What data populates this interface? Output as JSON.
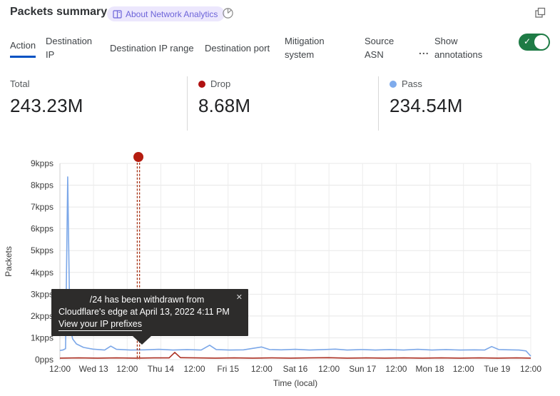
{
  "header": {
    "title": "Packets summary",
    "badge_label": "About Network Analytics"
  },
  "tabs": {
    "items": [
      {
        "label": "Action",
        "active": true
      },
      {
        "label": "Destination IP",
        "active": false
      },
      {
        "label": "Destination IP range",
        "active": false
      },
      {
        "label": "Destination port",
        "active": false
      },
      {
        "label": "Mitigation system",
        "active": false
      },
      {
        "label": "Source ASN",
        "active": false
      }
    ],
    "more_label": "...",
    "annotations_toggle": {
      "label": "Show annotations",
      "state": "on",
      "color": "#1e7b45"
    },
    "active_underline_color": "#0051c3"
  },
  "stats": [
    {
      "label": "Total",
      "value": "243.23M"
    },
    {
      "label": "Drop",
      "value": "8.68M",
      "dot_color": "#b01111"
    },
    {
      "label": "Pass",
      "value": "234.54M",
      "dot_color": "#7fabec"
    }
  ],
  "tooltip": {
    "line1": "/24 has been withdrawn from",
    "line2": "Cloudflare's edge at April 13, 2022 4:11 PM",
    "link_label": "View your IP prefixes",
    "close_glyph": "✕"
  },
  "chart_data": {
    "type": "line",
    "xlabel": "Time (local)",
    "ylabel": "Packets",
    "y_max_kpps": 9,
    "y_ticks": [
      "9kpps",
      "8kpps",
      "7kpps",
      "6kpps",
      "5kpps",
      "4kpps",
      "3kpps",
      "2kpps",
      "1kpps",
      "0pps"
    ],
    "x_ticks": [
      "12:00",
      "Wed 13",
      "12:00",
      "Thu 14",
      "12:00",
      "Fri 15",
      "12:00",
      "Sat 16",
      "12:00",
      "Sun 17",
      "12:00",
      "Mon 18",
      "12:00",
      "Tue 19",
      "12:00"
    ],
    "grid": true,
    "legend_position": "top-stats-row",
    "series": [
      {
        "name": "Pass",
        "color": "#7ba7e8",
        "unit": "kpps",
        "points": [
          [
            0,
            0.42
          ],
          [
            0.006,
            0.44
          ],
          [
            0.012,
            0.5
          ],
          [
            0.0165,
            8.38
          ],
          [
            0.021,
            1.6
          ],
          [
            0.027,
            0.95
          ],
          [
            0.035,
            0.72
          ],
          [
            0.05,
            0.56
          ],
          [
            0.07,
            0.48
          ],
          [
            0.095,
            0.44
          ],
          [
            0.108,
            0.62
          ],
          [
            0.12,
            0.47
          ],
          [
            0.15,
            0.44
          ],
          [
            0.18,
            0.45
          ],
          [
            0.21,
            0.47
          ],
          [
            0.24,
            0.44
          ],
          [
            0.27,
            0.46
          ],
          [
            0.3,
            0.44
          ],
          [
            0.318,
            0.66
          ],
          [
            0.332,
            0.46
          ],
          [
            0.36,
            0.44
          ],
          [
            0.39,
            0.45
          ],
          [
            0.428,
            0.58
          ],
          [
            0.445,
            0.46
          ],
          [
            0.47,
            0.45
          ],
          [
            0.5,
            0.47
          ],
          [
            0.53,
            0.44
          ],
          [
            0.56,
            0.46
          ],
          [
            0.585,
            0.48
          ],
          [
            0.61,
            0.44
          ],
          [
            0.64,
            0.46
          ],
          [
            0.67,
            0.44
          ],
          [
            0.7,
            0.46
          ],
          [
            0.73,
            0.44
          ],
          [
            0.76,
            0.47
          ],
          [
            0.79,
            0.44
          ],
          [
            0.82,
            0.46
          ],
          [
            0.85,
            0.44
          ],
          [
            0.88,
            0.45
          ],
          [
            0.902,
            0.44
          ],
          [
            0.917,
            0.6
          ],
          [
            0.932,
            0.46
          ],
          [
            0.955,
            0.45
          ],
          [
            0.975,
            0.44
          ],
          [
            0.99,
            0.4
          ],
          [
            1,
            0.16
          ]
        ]
      },
      {
        "name": "Drop",
        "color": "#ab2f22",
        "unit": "kpps",
        "points": [
          [
            0,
            0.07
          ],
          [
            0.04,
            0.08
          ],
          [
            0.08,
            0.07
          ],
          [
            0.12,
            0.08
          ],
          [
            0.16,
            0.07
          ],
          [
            0.2,
            0.08
          ],
          [
            0.232,
            0.08
          ],
          [
            0.244,
            0.33
          ],
          [
            0.256,
            0.09
          ],
          [
            0.29,
            0.08
          ],
          [
            0.33,
            0.07
          ],
          [
            0.37,
            0.08
          ],
          [
            0.41,
            0.07
          ],
          [
            0.45,
            0.08
          ],
          [
            0.49,
            0.07
          ],
          [
            0.53,
            0.08
          ],
          [
            0.57,
            0.09
          ],
          [
            0.61,
            0.07
          ],
          [
            0.65,
            0.08
          ],
          [
            0.69,
            0.07
          ],
          [
            0.73,
            0.08
          ],
          [
            0.77,
            0.07
          ],
          [
            0.81,
            0.08
          ],
          [
            0.85,
            0.07
          ],
          [
            0.89,
            0.08
          ],
          [
            0.93,
            0.07
          ],
          [
            0.97,
            0.08
          ],
          [
            1,
            0.07
          ]
        ]
      }
    ],
    "annotation": {
      "x_frac": 0.1667,
      "time_label": "April 13, 2022 4:11 PM",
      "dot_color": "#b51d10",
      "line_color": "#a63215"
    }
  }
}
